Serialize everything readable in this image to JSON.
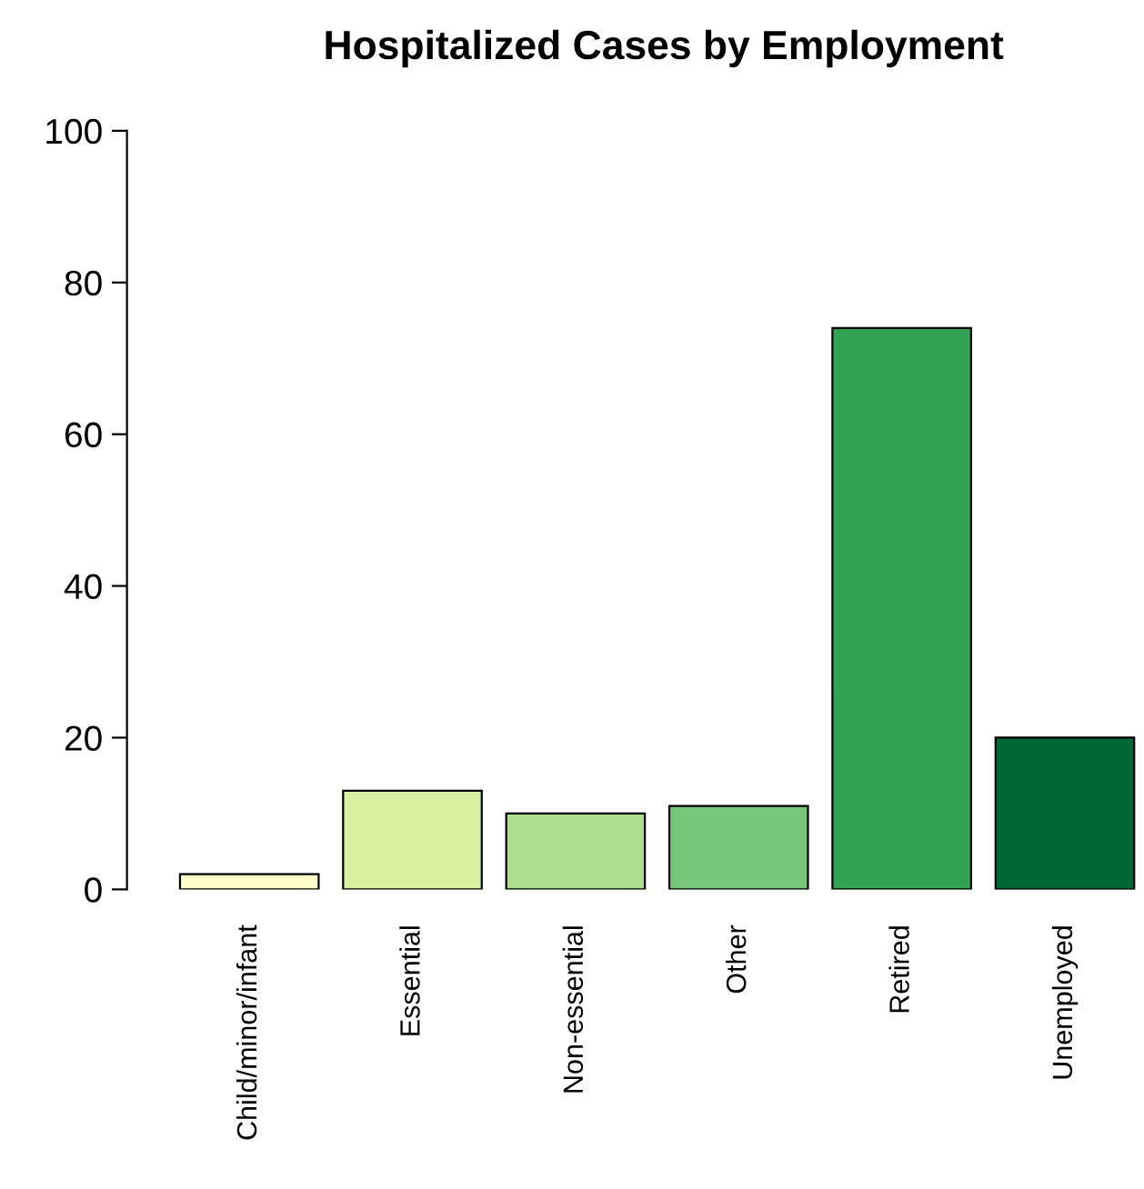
{
  "chart_data": {
    "type": "bar",
    "title": "Hospitalized Cases by Employment",
    "categories": [
      "Child/minor/infant",
      "Essential",
      "Non-essential",
      "Other",
      "Retired",
      "Unemployed"
    ],
    "values": [
      2,
      13,
      10,
      11,
      74,
      20
    ],
    "colors": [
      "#ffffcc",
      "#d9f0a3",
      "#addd8e",
      "#78c679",
      "#31a354",
      "#006837"
    ],
    "ylim": [
      0,
      100
    ],
    "yticks": [
      0,
      20,
      40,
      60,
      80,
      100
    ],
    "grid": false,
    "legend": false
  }
}
